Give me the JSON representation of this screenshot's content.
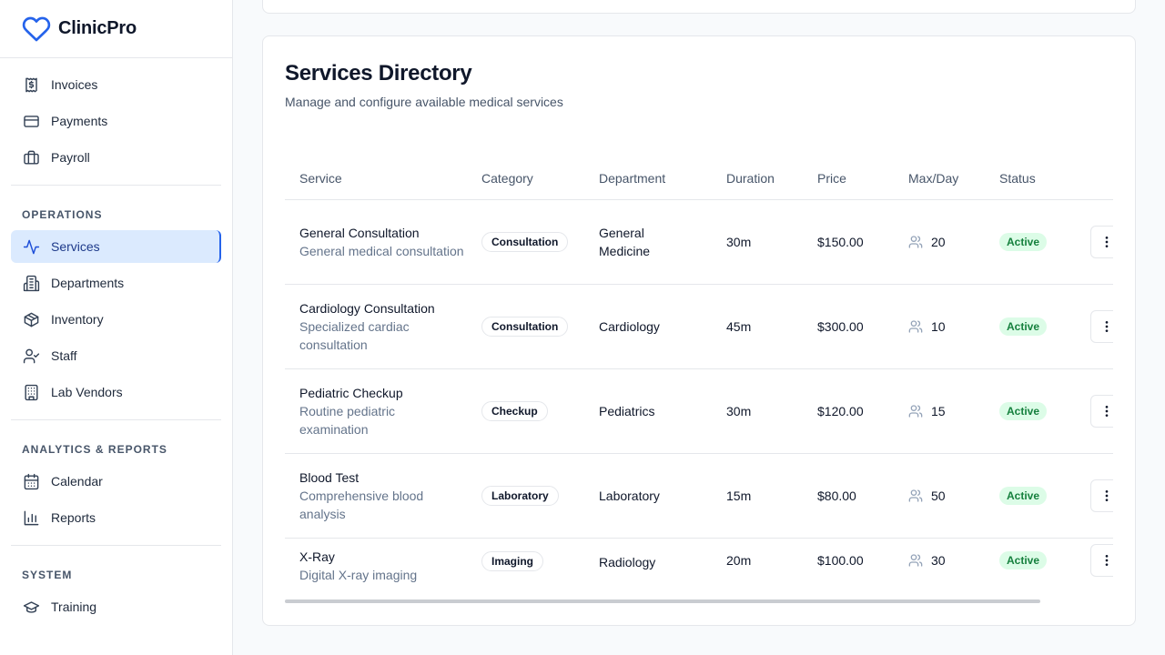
{
  "brand": {
    "name": "ClinicPro"
  },
  "sidebar": {
    "top_items": [
      {
        "label": "Invoices",
        "icon": "invoice-icon"
      },
      {
        "label": "Payments",
        "icon": "credit-card-icon"
      },
      {
        "label": "Payroll",
        "icon": "briefcase-icon"
      }
    ],
    "sections": [
      {
        "label": "OPERATIONS",
        "items": [
          {
            "label": "Services",
            "icon": "activity-icon",
            "active": true
          },
          {
            "label": "Departments",
            "icon": "building-icon"
          },
          {
            "label": "Inventory",
            "icon": "package-icon"
          },
          {
            "label": "Staff",
            "icon": "user-check-icon"
          },
          {
            "label": "Lab Vendors",
            "icon": "office-building-icon"
          }
        ]
      },
      {
        "label": "ANALYTICS & REPORTS",
        "items": [
          {
            "label": "Calendar",
            "icon": "calendar-icon"
          },
          {
            "label": "Reports",
            "icon": "bar-chart-icon"
          }
        ]
      },
      {
        "label": "SYSTEM",
        "items": [
          {
            "label": "Training",
            "icon": "graduation-cap-icon"
          }
        ]
      }
    ]
  },
  "services": {
    "title": "Services Directory",
    "subtitle": "Manage and configure available medical services",
    "columns": [
      "Service",
      "Category",
      "Department",
      "Duration",
      "Price",
      "Max/Day",
      "Status"
    ],
    "rows": [
      {
        "name": "General Consultation",
        "desc": "General medical consultation",
        "category": "Consultation",
        "department": "General Medicine",
        "duration": "30m",
        "price": "$150.00",
        "max": "20",
        "status": "Active"
      },
      {
        "name": "Cardiology Consultation",
        "desc": "Specialized cardiac consultation",
        "category": "Consultation",
        "department": "Cardiology",
        "duration": "45m",
        "price": "$300.00",
        "max": "10",
        "status": "Active"
      },
      {
        "name": "Pediatric Checkup",
        "desc": "Routine pediatric examination",
        "category": "Checkup",
        "department": "Pediatrics",
        "duration": "30m",
        "price": "$120.00",
        "max": "15",
        "status": "Active"
      },
      {
        "name": "Blood Test",
        "desc": "Comprehensive blood analysis",
        "category": "Laboratory",
        "department": "Laboratory",
        "duration": "15m",
        "price": "$80.00",
        "max": "50",
        "status": "Active"
      },
      {
        "name": "X-Ray",
        "desc": "Digital X-ray imaging",
        "category": "Imaging",
        "department": "Radiology",
        "duration": "20m",
        "price": "$100.00",
        "max": "30",
        "status": "Active"
      }
    ]
  },
  "colors": {
    "accent": "#2563eb",
    "active_bg": "#dbeafe",
    "status_bg": "#dcfce7",
    "status_text": "#15803d"
  }
}
